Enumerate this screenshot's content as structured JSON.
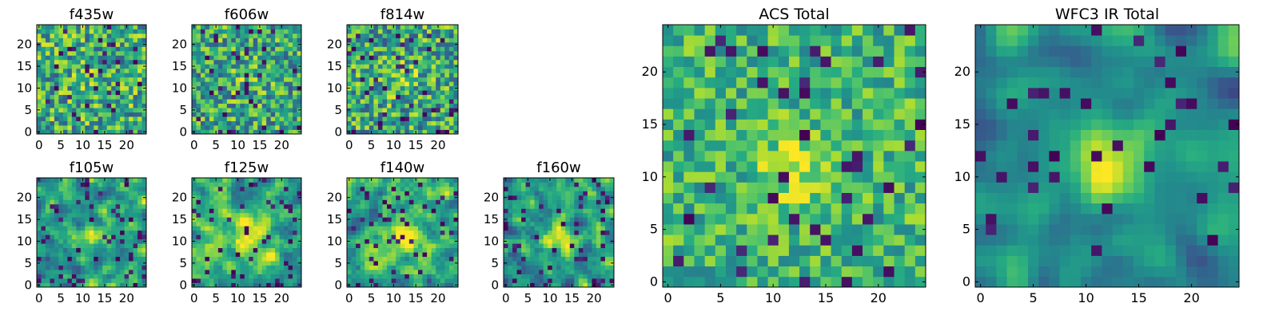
{
  "colormap": "viridis",
  "chart_data": [
    {
      "type": "heatmap",
      "title": "f435w",
      "xticks": [
        0,
        5,
        10,
        15,
        20
      ],
      "yticks": [
        0,
        5,
        10,
        15,
        20
      ],
      "grid_size": 25,
      "xlim": [
        -0.5,
        24.5
      ],
      "ylim": [
        -0.5,
        24.5
      ],
      "seed": 11,
      "noise": 0.42,
      "mean": 0.62,
      "blob": {
        "cx": 12,
        "cy": 12,
        "sigma": 2.5,
        "amp": 0.05
      },
      "smooth": 0,
      "clip_low": 0.05
    },
    {
      "type": "heatmap",
      "title": "f606w",
      "xticks": [
        0,
        5,
        10,
        15,
        20
      ],
      "yticks": [
        0,
        5,
        10,
        15,
        20
      ],
      "grid_size": 25,
      "xlim": [
        -0.5,
        24.5
      ],
      "ylim": [
        -0.5,
        24.5
      ],
      "seed": 23,
      "noise": 0.4,
      "mean": 0.6,
      "blob": {
        "cx": 12,
        "cy": 12,
        "sigma": 2.5,
        "amp": 0.15
      },
      "smooth": 0,
      "clip_low": 0.05
    },
    {
      "type": "heatmap",
      "title": "f814w",
      "xticks": [
        0,
        5,
        10,
        15,
        20
      ],
      "yticks": [
        0,
        5,
        10,
        15,
        20
      ],
      "grid_size": 25,
      "xlim": [
        -0.5,
        24.5
      ],
      "ylim": [
        -0.5,
        24.5
      ],
      "seed": 37,
      "noise": 0.42,
      "mean": 0.6,
      "blob": {
        "cx": 12,
        "cy": 12,
        "sigma": 2.5,
        "amp": 0.2
      },
      "smooth": 0,
      "clip_low": 0.05
    },
    {
      "type": "heatmap",
      "title": "f105w",
      "xticks": [
        0,
        5,
        10,
        15,
        20
      ],
      "yticks": [
        0,
        5,
        10,
        15,
        20
      ],
      "grid_size": 25,
      "xlim": [
        -0.5,
        24.5
      ],
      "ylim": [
        -0.5,
        24.5
      ],
      "seed": 41,
      "noise": 0.5,
      "mean": 0.58,
      "blob": {
        "cx": 13,
        "cy": 11,
        "sigma": 2.8,
        "amp": 0.3
      },
      "smooth": 1,
      "clip_low": 0.08
    },
    {
      "type": "heatmap",
      "title": "f125w",
      "xticks": [
        0,
        5,
        10,
        15,
        20
      ],
      "yticks": [
        0,
        5,
        10,
        15,
        20
      ],
      "grid_size": 25,
      "xlim": [
        -0.5,
        24.5
      ],
      "ylim": [
        -0.5,
        24.5
      ],
      "seed": 53,
      "noise": 0.45,
      "mean": 0.62,
      "blob": {
        "cx": 13,
        "cy": 11,
        "sigma": 3,
        "amp": 0.35
      },
      "smooth": 1,
      "clip_low": 0.08
    },
    {
      "type": "heatmap",
      "title": "f140w",
      "xticks": [
        0,
        5,
        10,
        15,
        20
      ],
      "yticks": [
        0,
        5,
        10,
        15,
        20
      ],
      "grid_size": 25,
      "xlim": [
        -0.5,
        24.5
      ],
      "ylim": [
        -0.5,
        24.5
      ],
      "seed": 67,
      "noise": 0.45,
      "mean": 0.6,
      "blob": {
        "cx": 12,
        "cy": 11,
        "sigma": 3,
        "amp": 0.38
      },
      "smooth": 1,
      "clip_low": 0.08
    },
    {
      "type": "heatmap",
      "title": "f160w",
      "xticks": [
        0,
        5,
        10,
        15,
        20
      ],
      "yticks": [
        0,
        5,
        10,
        15,
        20
      ],
      "grid_size": 25,
      "xlim": [
        -0.5,
        24.5
      ],
      "ylim": [
        -0.5,
        24.5
      ],
      "seed": 79,
      "noise": 0.52,
      "mean": 0.52,
      "blob": {
        "cx": 12,
        "cy": 11,
        "sigma": 2.8,
        "amp": 0.4
      },
      "smooth": 1,
      "clip_low": 0.08
    },
    {
      "type": "heatmap",
      "title": "ACS Total",
      "xticks": [
        0,
        5,
        10,
        15,
        20
      ],
      "yticks": [
        0,
        5,
        10,
        15,
        20
      ],
      "grid_size": 25,
      "xlim": [
        -0.5,
        24.5
      ],
      "ylim": [
        -0.5,
        24.5
      ],
      "seed": 97,
      "noise": 0.28,
      "mean": 0.66,
      "blob": {
        "cx": 12,
        "cy": 11,
        "sigma": 2.2,
        "amp": 0.3
      },
      "smooth": 0,
      "clip_low": 0.05
    },
    {
      "type": "heatmap",
      "title": "WFC3 IR Total",
      "xticks": [
        0,
        5,
        10,
        15,
        20
      ],
      "yticks": [
        0,
        5,
        10,
        15,
        20
      ],
      "grid_size": 25,
      "xlim": [
        -0.5,
        24.5
      ],
      "ylim": [
        -0.5,
        24.5
      ],
      "seed": 113,
      "noise": 0.35,
      "mean": 0.5,
      "blob": {
        "cx": 12,
        "cy": 11,
        "sigma": 2.5,
        "amp": 0.45
      },
      "smooth": 2,
      "clip_low": 0.05
    }
  ]
}
